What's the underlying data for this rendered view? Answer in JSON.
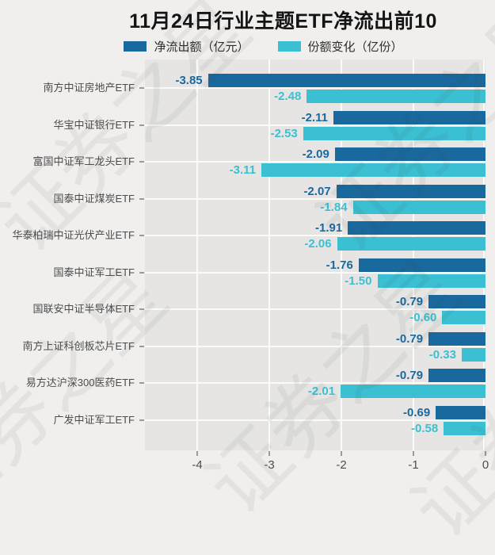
{
  "page": {
    "watermark_text": "证券之星",
    "background_color": "#f0efee",
    "panel_color": "#e6e5e4"
  },
  "chart_data": {
    "type": "bar",
    "orientation": "horizontal",
    "title": "11月24日行业主题ETF净流出前10",
    "categories": [
      "南方中证房地产ETF",
      "华宝中证银行ETF",
      "富国中证军工龙头ETF",
      "国泰中证煤炭ETF",
      "华泰柏瑞中证光伏产业ETF",
      "国泰中证军工ETF",
      "国联安中证半导体ETF",
      "南方上证科创板芯片ETF",
      "易方达沪深300医药ETF",
      "广发中证军工ETF"
    ],
    "series": [
      {
        "name": "净流出额（亿元）",
        "color": "#19699e",
        "values": [
          -3.85,
          -2.11,
          -2.09,
          -2.07,
          -1.91,
          -1.76,
          -0.79,
          -0.79,
          -0.79,
          -0.69
        ]
      },
      {
        "name": "份额变化（亿份）",
        "color": "#3ac0d2",
        "values": [
          -2.48,
          -2.53,
          -3.11,
          -1.84,
          -2.06,
          -1.5,
          -0.6,
          -0.33,
          -2.01,
          -0.58
        ]
      }
    ],
    "x_ticks": [
      -4,
      -3,
      -2,
      -1,
      0
    ],
    "xlim": [
      -4.73,
      0
    ],
    "grid": true,
    "gridline_color": "#fafaf9",
    "legend_position": "top",
    "value_labels": true
  }
}
